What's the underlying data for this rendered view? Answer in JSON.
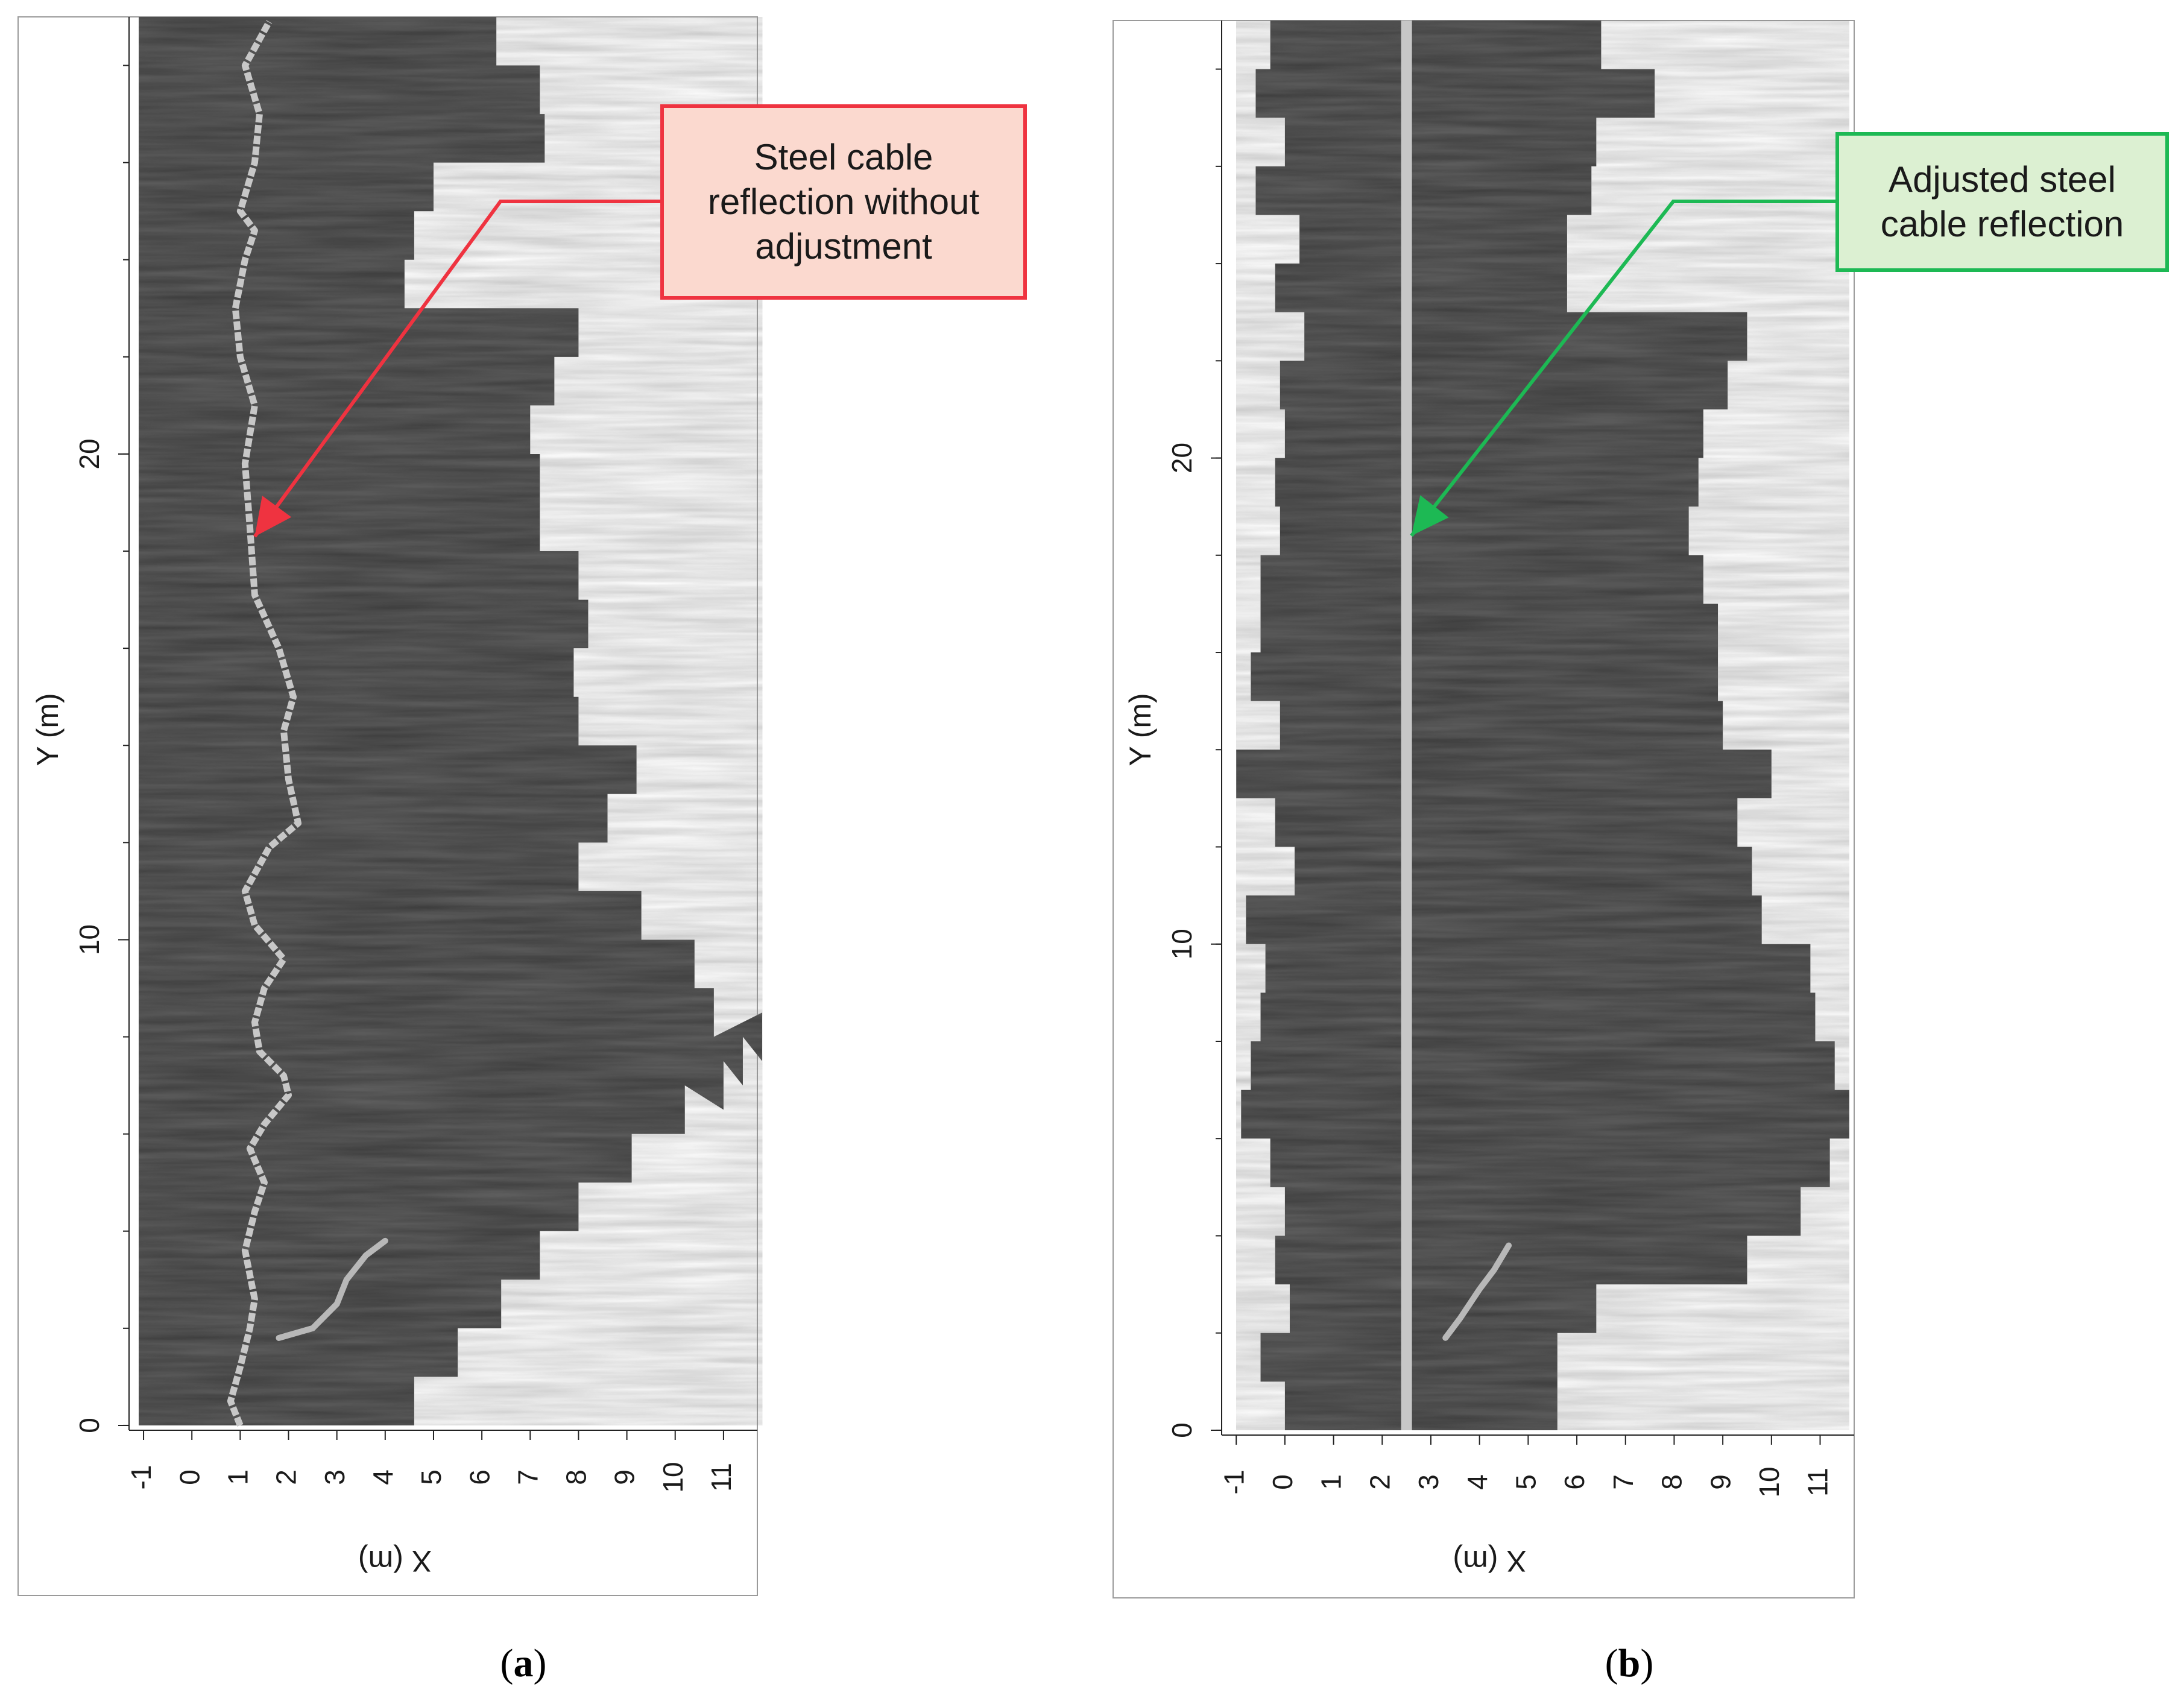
{
  "chart_data": [
    {
      "type": "heatmap",
      "panel_label": "(a)",
      "xlabel": "X (m)",
      "ylabel": "Y (m)",
      "x_ticks": [
        "-1",
        "0",
        "1",
        "2",
        "3",
        "4",
        "5",
        "6",
        "7",
        "8",
        "9",
        "10",
        "11"
      ],
      "y_ticks": [
        "0",
        "10",
        "20"
      ],
      "xlim": [
        -1.3,
        11.7
      ],
      "ylim": [
        -0.1,
        29
      ],
      "annotation": "Steel cable reflection without adjustment",
      "annotation_color": "#ef3340",
      "annotation_fill": "#fbd9cf",
      "arrow_target": [
        1.3,
        18.3
      ],
      "cable_path": [
        [
          1.0,
          0.0
        ],
        [
          0.8,
          0.5
        ],
        [
          1.0,
          1.2
        ],
        [
          1.2,
          2.0
        ],
        [
          1.3,
          2.6
        ],
        [
          1.1,
          3.6
        ],
        [
          1.3,
          4.4
        ],
        [
          1.5,
          5.0
        ],
        [
          1.2,
          5.7
        ],
        [
          1.5,
          6.2
        ],
        [
          2.0,
          6.8
        ],
        [
          1.9,
          7.2
        ],
        [
          1.4,
          7.7
        ],
        [
          1.3,
          8.3
        ],
        [
          1.5,
          9.0
        ],
        [
          1.9,
          9.6
        ],
        [
          1.3,
          10.3
        ],
        [
          1.1,
          11.0
        ],
        [
          1.6,
          11.9
        ],
        [
          2.2,
          12.4
        ],
        [
          2.0,
          13.3
        ],
        [
          1.9,
          14.3
        ],
        [
          2.1,
          15.0
        ],
        [
          1.8,
          16.0
        ],
        [
          1.3,
          17.1
        ],
        [
          1.2,
          18.5
        ],
        [
          1.1,
          19.8
        ],
        [
          1.3,
          21.0
        ],
        [
          1.0,
          22.0
        ],
        [
          0.9,
          23.0
        ],
        [
          1.1,
          24.0
        ],
        [
          1.3,
          24.6
        ],
        [
          1.0,
          25.0
        ],
        [
          1.3,
          26.0
        ],
        [
          1.4,
          27.0
        ],
        [
          1.1,
          28.0
        ],
        [
          1.6,
          28.9
        ]
      ],
      "secondary_path": [
        [
          1.8,
          1.8
        ],
        [
          2.5,
          2.0
        ],
        [
          3.0,
          2.5
        ],
        [
          3.2,
          3.0
        ],
        [
          3.6,
          3.5
        ],
        [
          4.0,
          3.8
        ]
      ],
      "right_edge": [
        [
          0,
          4.6
        ],
        [
          1,
          5.5
        ],
        [
          2,
          6.4
        ],
        [
          3,
          7.2
        ],
        [
          4,
          8.0
        ],
        [
          5,
          9.1
        ],
        [
          6,
          10.2
        ],
        [
          6.5,
          11.0
        ],
        [
          7,
          11.4
        ],
        [
          7.5,
          11.8
        ],
        [
          8,
          10.8
        ],
        [
          9,
          10.4
        ],
        [
          10,
          9.3
        ],
        [
          11,
          8.0
        ],
        [
          12,
          8.6
        ],
        [
          13,
          9.2
        ],
        [
          14,
          8.0
        ],
        [
          15,
          7.9
        ],
        [
          16,
          8.2
        ],
        [
          17,
          8.0
        ],
        [
          18,
          7.2
        ],
        [
          19,
          7.2
        ],
        [
          20,
          7.0
        ],
        [
          21,
          7.5
        ],
        [
          22,
          8.0
        ],
        [
          23,
          4.4
        ],
        [
          24,
          4.6
        ],
        [
          25,
          5.0
        ],
        [
          26,
          7.3
        ],
        [
          27,
          7.2
        ],
        [
          28,
          6.3
        ],
        [
          29,
          6.0
        ]
      ],
      "left_edge": [
        [
          0,
          -1.1
        ],
        [
          29,
          -1.1
        ]
      ]
    },
    {
      "type": "heatmap",
      "panel_label": "(b)",
      "xlabel": "X (m)",
      "ylabel": "Y (m)",
      "x_ticks": [
        "-1",
        "0",
        "1",
        "2",
        "3",
        "4",
        "5",
        "6",
        "7",
        "8",
        "9",
        "10",
        "11"
      ],
      "y_ticks": [
        "0",
        "10",
        "20"
      ],
      "xlim": [
        -1.3,
        11.7
      ],
      "ylim": [
        -0.1,
        29
      ],
      "annotation": "Adjusted steel cable reflection",
      "annotation_color": "#1db954",
      "annotation_fill": "#dcf0d2",
      "arrow_target": [
        2.6,
        18.4
      ],
      "cable_path": [
        [
          2.5,
          0.0
        ],
        [
          2.5,
          29.0
        ]
      ],
      "secondary_path": [
        [
          3.3,
          1.9
        ],
        [
          3.6,
          2.3
        ],
        [
          4.0,
          2.9
        ],
        [
          4.3,
          3.3
        ],
        [
          4.6,
          3.8
        ]
      ],
      "right_edge": [
        [
          0,
          5.6
        ],
        [
          1,
          5.6
        ],
        [
          2,
          6.4
        ],
        [
          3,
          9.5
        ],
        [
          4,
          10.6
        ],
        [
          5,
          11.2
        ],
        [
          6,
          11.6
        ],
        [
          7,
          11.3
        ],
        [
          8,
          10.9
        ],
        [
          9,
          10.8
        ],
        [
          10,
          9.8
        ],
        [
          11,
          9.6
        ],
        [
          12,
          9.3
        ],
        [
          13,
          10.0
        ],
        [
          14,
          9.0
        ],
        [
          15,
          8.9
        ],
        [
          16,
          8.9
        ],
        [
          17,
          8.6
        ],
        [
          18,
          8.3
        ],
        [
          19,
          8.5
        ],
        [
          20,
          8.6
        ],
        [
          21,
          9.1
        ],
        [
          22,
          9.5
        ],
        [
          23,
          5.8
        ],
        [
          24,
          5.8
        ],
        [
          25,
          6.3
        ],
        [
          26,
          6.4
        ],
        [
          27,
          7.6
        ],
        [
          28,
          6.5
        ],
        [
          29,
          6.5
        ]
      ],
      "left_edge": [
        [
          0,
          0.0
        ],
        [
          1,
          -0.5
        ],
        [
          2,
          0.1
        ],
        [
          3,
          -0.2
        ],
        [
          4,
          0.0
        ],
        [
          5,
          -0.3
        ],
        [
          6,
          -0.9
        ],
        [
          7,
          -0.7
        ],
        [
          8,
          -0.5
        ],
        [
          9,
          -0.4
        ],
        [
          10,
          -0.8
        ],
        [
          11,
          0.2
        ],
        [
          12,
          -0.2
        ],
        [
          13,
          -1.0
        ],
        [
          14,
          -0.1
        ],
        [
          15,
          -0.7
        ],
        [
          16,
          -0.5
        ],
        [
          17,
          -0.5
        ],
        [
          18,
          -0.1
        ],
        [
          19,
          -0.2
        ],
        [
          20,
          0.0
        ],
        [
          21,
          -0.1
        ],
        [
          22,
          0.4
        ],
        [
          23,
          -0.2
        ],
        [
          24,
          0.3
        ],
        [
          25,
          -0.6
        ],
        [
          26,
          0.0
        ],
        [
          27,
          -0.6
        ],
        [
          28,
          -0.3
        ],
        [
          29,
          -0.1
        ]
      ]
    }
  ]
}
